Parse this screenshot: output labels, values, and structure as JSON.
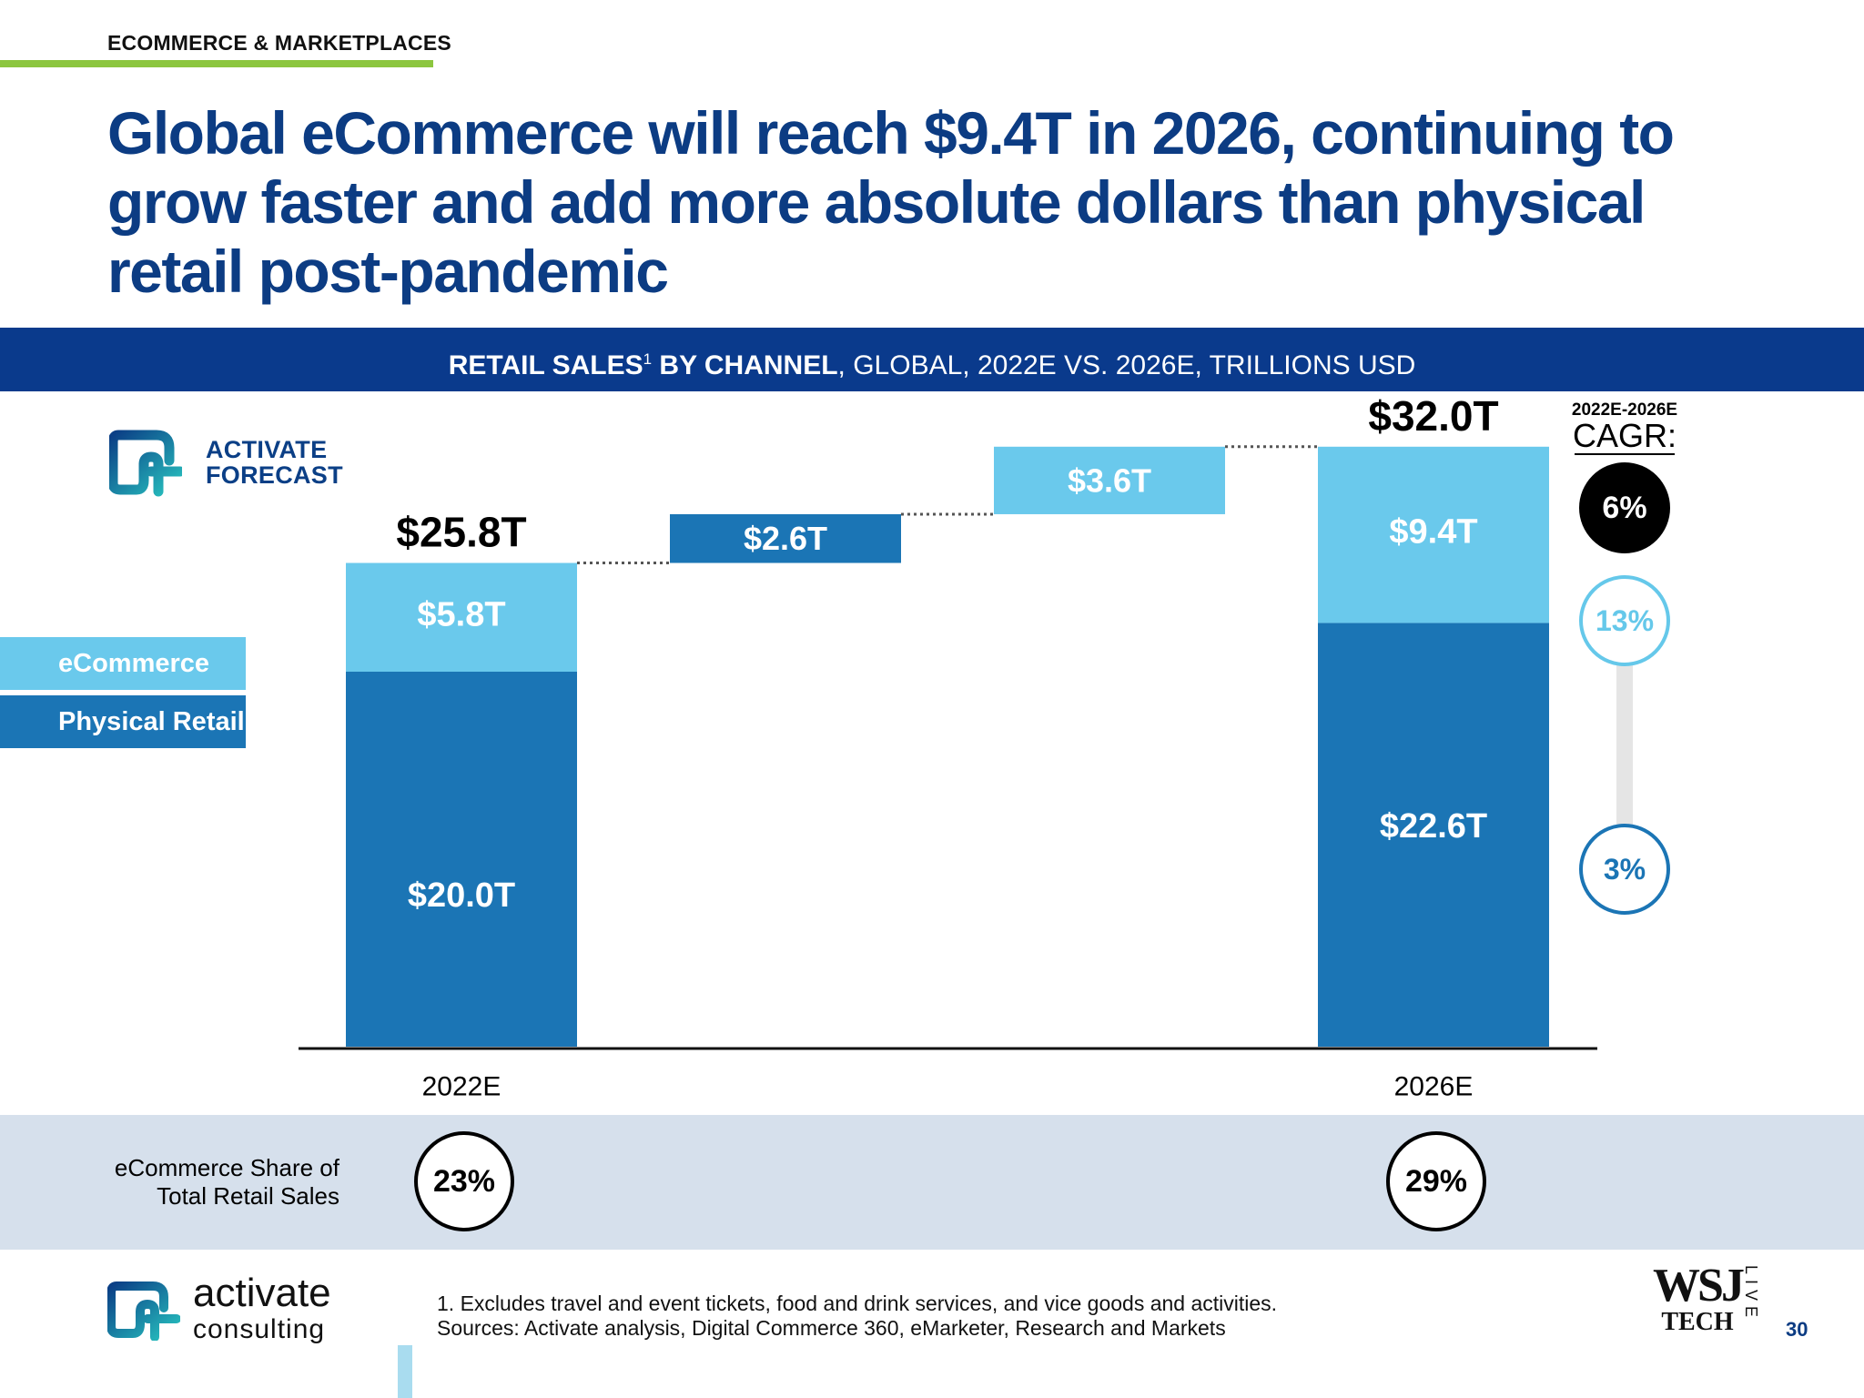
{
  "header": {
    "section": "ECOMMERCE & MARKETPLACES",
    "headline": "Global eCommerce will reach $9.4T in 2026, continuing to grow faster and add more absolute dollars than physical retail post-pandemic"
  },
  "banner": {
    "bold": "RETAIL SALES",
    "sup": "1",
    "bold2": " BY CHANNEL",
    "rest": ", GLOBAL, 2022E VS. 2026E, TRILLIONS USD"
  },
  "activate_forecast": {
    "line1": "ACTIVATE",
    "line2": "FORECAST"
  },
  "legend": {
    "ecommerce": "eCommerce",
    "physical": "Physical Retail"
  },
  "cagr": {
    "period": "2022E-2026E",
    "title": "CAGR:",
    "total": "6%",
    "ecommerce": "13%",
    "physical": "3%"
  },
  "chart_data": {
    "type": "bar",
    "subtype": "waterfall",
    "categories": [
      "2022E",
      "Physical Retail increase",
      "eCommerce increase",
      "2026E"
    ],
    "x_labels": [
      "2022E",
      "2026E"
    ],
    "series": [
      {
        "name": "Physical Retail",
        "values": [
          20.0,
          2.6,
          null,
          22.6
        ],
        "labels": [
          "$20.0T",
          "$2.6T",
          "",
          "$22.6T"
        ]
      },
      {
        "name": "eCommerce",
        "values": [
          5.8,
          null,
          3.6,
          9.4
        ],
        "labels": [
          "$5.8T",
          "",
          "$3.6T",
          "$9.4T"
        ]
      }
    ],
    "totals": [
      25.8,
      null,
      null,
      32.0
    ],
    "total_labels": [
      "$25.8T",
      "",
      "",
      "$32.0T"
    ],
    "steps": [
      {
        "from": 25.8,
        "to": 28.4,
        "label": "$2.6T",
        "series": "Physical Retail"
      },
      {
        "from": 28.4,
        "to": 32.0,
        "label": "$3.6T",
        "series": "eCommerce"
      }
    ],
    "ylim": [
      0,
      32.0
    ],
    "colors": {
      "ecommerce": "#6ac9ec",
      "physical": "#1b75b5"
    },
    "legend_position": "left",
    "grid": false
  },
  "share": {
    "label_line1": "eCommerce Share of",
    "label_line2": "Total Retail Sales",
    "values": [
      "23%",
      "29%"
    ]
  },
  "footer": {
    "brand_top": "activate",
    "brand_bottom": "consulting",
    "footnote1": "1. Excludes travel and event tickets, food and drink services, and vice goods and activities.",
    "footnote2": "Sources: Activate analysis, Digital Commerce 360, eMarketer, Research and Markets",
    "wsj_top": "WSJ",
    "wsj_bottom": "TECH",
    "wsj_live": "LIVE",
    "page": "30"
  }
}
